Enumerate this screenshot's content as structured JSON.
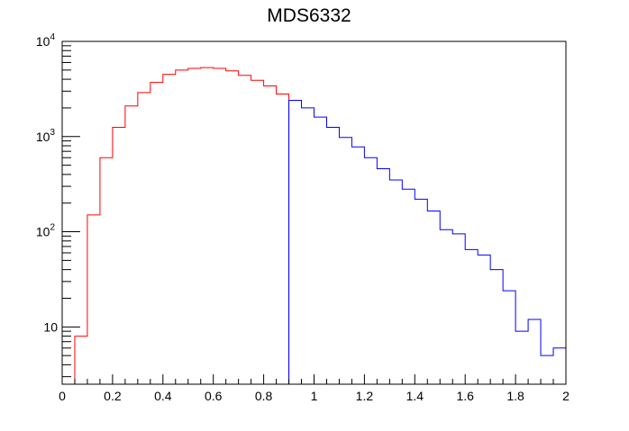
{
  "chart_data": {
    "type": "histogram",
    "title": "MDS6332",
    "xlabel": "",
    "ylabel": "",
    "xlim": [
      0,
      2
    ],
    "ylim": [
      2.5,
      10000
    ],
    "yscale": "log",
    "grid": false,
    "legend": "none",
    "bin_width": 0.05,
    "x_ticks": [
      0,
      0.2,
      0.4,
      0.6,
      0.8,
      1,
      1.2,
      1.4,
      1.6,
      1.8,
      2
    ],
    "x_tick_labels": [
      "0",
      "0.2",
      "0.4",
      "0.6",
      "0.8",
      "1",
      "1.2",
      "1.4",
      "1.6",
      "1.8",
      "2"
    ],
    "y_ticks": [
      {
        "value": 10,
        "base": "10",
        "exp": ""
      },
      {
        "value": 100,
        "base": "10",
        "exp": "2"
      },
      {
        "value": 1000,
        "base": "10",
        "exp": "3"
      },
      {
        "value": 10000,
        "base": "10",
        "exp": "4"
      }
    ],
    "series": [
      {
        "color": "#ff0000",
        "x_start": 0.0,
        "values": [
          0,
          8,
          150,
          600,
          1250,
          2100,
          2900,
          3700,
          4500,
          5000,
          5200,
          5300,
          5200,
          4900,
          4400,
          3900,
          3400,
          2800
        ]
      },
      {
        "color": "#0000ff",
        "x_start": 0.9,
        "values": [
          2400,
          2000,
          1600,
          1250,
          980,
          780,
          600,
          460,
          350,
          280,
          220,
          165,
          105,
          95,
          65,
          57,
          40,
          24,
          9,
          12,
          5,
          6
        ]
      }
    ]
  }
}
